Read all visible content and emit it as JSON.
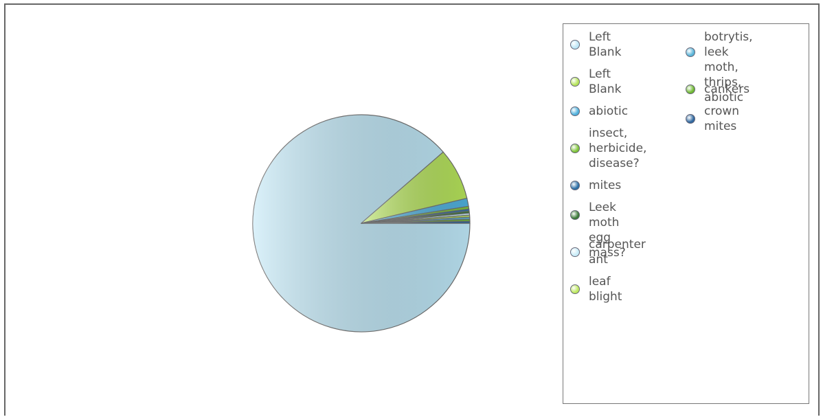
{
  "chart_data": {
    "type": "pie",
    "title": "",
    "legend_position": "right",
    "slices": [
      {
        "label": "Left\nBlank",
        "value": 88.6,
        "color": "#bde6f6"
      },
      {
        "label": "Left\nBlank",
        "value": 7.7,
        "color": "#b5e35a"
      },
      {
        "label": "abiotic",
        "value": 1.2,
        "color": "#4fb0dc"
      },
      {
        "label": "insect,\nherbicide,\ndisease?",
        "value": 0.4,
        "color": "#7fc43a"
      },
      {
        "label": "mites",
        "value": 0.3,
        "color": "#2d6fa6"
      },
      {
        "label": "Leek moth\negg mass?",
        "value": 0.3,
        "color": "#3c7a3a"
      },
      {
        "label": "carpenter\nant",
        "value": 0.3,
        "color": "#c8ecf8"
      },
      {
        "label": "leaf\nblight",
        "value": 0.3,
        "color": "#bde85f"
      },
      {
        "label": "botrytis, leek\nmoth, thrips,\nabiotic",
        "value": 0.3,
        "color": "#5ab4d8"
      },
      {
        "label": "cankers",
        "value": 0.3,
        "color": "#6fb832"
      },
      {
        "label": "crown\nmites",
        "value": 0.3,
        "color": "#2f679e"
      }
    ]
  }
}
